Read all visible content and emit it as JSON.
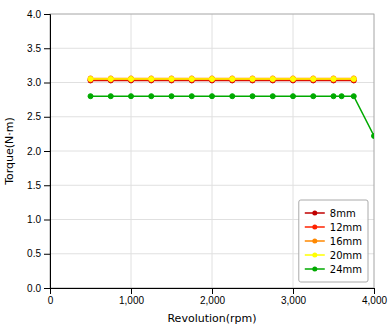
{
  "chart_data": {
    "type": "line",
    "xlabel": "Revolution(rpm)",
    "ylabel": "Torque(N·m)",
    "series": [
      {
        "name": "8mm",
        "color": "#c00000",
        "x": [
          500,
          750,
          1000,
          1250,
          1500,
          1750,
          2000,
          2250,
          2500,
          2750,
          3000,
          3250,
          3500,
          3750
        ],
        "values": [
          3.03,
          3.03,
          3.03,
          3.03,
          3.03,
          3.03,
          3.03,
          3.03,
          3.03,
          3.03,
          3.03,
          3.03,
          3.03,
          3.03
        ]
      },
      {
        "name": "12mm",
        "color": "#ff2200",
        "x": [
          500,
          750,
          1000,
          1250,
          1500,
          1750,
          2000,
          2250,
          2500,
          2750,
          3000,
          3250,
          3500,
          3750
        ],
        "values": [
          3.04,
          3.04,
          3.04,
          3.04,
          3.04,
          3.04,
          3.04,
          3.04,
          3.04,
          3.04,
          3.04,
          3.04,
          3.04,
          3.04
        ]
      },
      {
        "name": "16mm",
        "color": "#ff8800",
        "x": [
          500,
          750,
          1000,
          1250,
          1500,
          1750,
          2000,
          2250,
          2500,
          2750,
          3000,
          3250,
          3500,
          3750
        ],
        "values": [
          3.06,
          3.06,
          3.06,
          3.06,
          3.06,
          3.06,
          3.06,
          3.06,
          3.06,
          3.06,
          3.06,
          3.06,
          3.06,
          3.06
        ]
      },
      {
        "name": "20mm",
        "color": "#ffff00",
        "x": [
          500,
          750,
          1000,
          1250,
          1500,
          1750,
          2000,
          2250,
          2500,
          2750,
          3000,
          3250,
          3500,
          3750
        ],
        "values": [
          3.05,
          3.05,
          3.05,
          3.05,
          3.05,
          3.05,
          3.05,
          3.05,
          3.05,
          3.05,
          3.05,
          3.05,
          3.05,
          3.05
        ]
      },
      {
        "name": "24mm",
        "color": "#00aa00",
        "x": [
          500,
          750,
          1000,
          1250,
          1500,
          1750,
          2000,
          2250,
          2500,
          2750,
          3000,
          3250,
          3500,
          3600,
          3750,
          4000
        ],
        "values": [
          2.8,
          2.8,
          2.8,
          2.8,
          2.8,
          2.8,
          2.8,
          2.8,
          2.8,
          2.8,
          2.8,
          2.8,
          2.8,
          2.8,
          2.8,
          2.22
        ]
      }
    ],
    "xlim": [
      0,
      4000
    ],
    "ylim": [
      0.0,
      4.0
    ],
    "xticks": [
      0,
      {
        "value": 1000,
        "label": "1,000"
      },
      {
        "value": 2000,
        "label": "2,000"
      },
      {
        "value": 3000,
        "label": "3,000"
      },
      {
        "value": 4000,
        "label": "4,000"
      }
    ],
    "yticks": [
      {
        "value": 0,
        "label": "0.0"
      },
      0.5,
      {
        "value": 1,
        "label": "1.0"
      },
      1.5,
      {
        "value": 2,
        "label": "2.0"
      },
      2.5,
      {
        "value": 3,
        "label": "3.0"
      },
      3.5,
      {
        "value": 4,
        "label": "4.0"
      }
    ],
    "grid": true,
    "legend": "lower right",
    "marker": "circle"
  }
}
